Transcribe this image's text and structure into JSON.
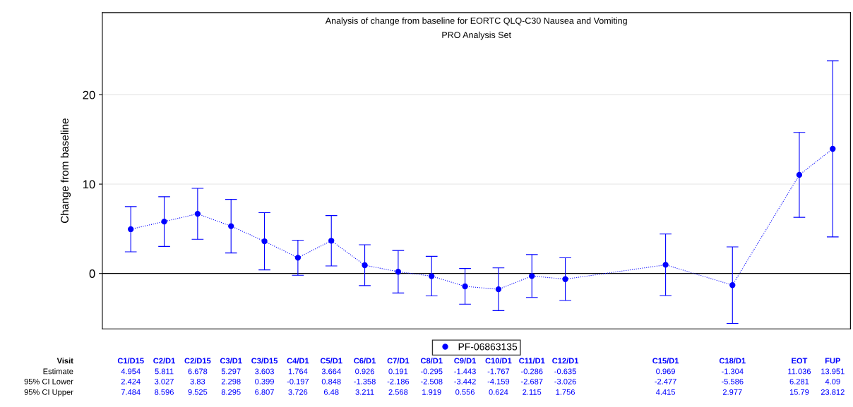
{
  "chart_data": {
    "type": "line",
    "title": "Analysis of change from baseline for EORTC QLQ-C30 Nausea and Vomiting",
    "subtitle": "PRO Analysis Set",
    "ylabel": "Change from baseline",
    "categories": [
      "C1/D15",
      "C2/D1",
      "C2/D15",
      "C3/D1",
      "C3/D15",
      "C4/D1",
      "C5/D1",
      "C6/D1",
      "C7/D1",
      "C8/D1",
      "C9/D1",
      "C10/D1",
      "C11/D1",
      "C12/D1",
      null,
      null,
      "C15/D1",
      null,
      "C18/D1",
      null,
      "EOT",
      "FUP"
    ],
    "series": [
      {
        "name": "PF-06863135",
        "color": "#0000ff",
        "values": [
          4.954,
          5.811,
          6.678,
          5.297,
          3.603,
          1.764,
          3.664,
          0.926,
          0.191,
          -0.295,
          -1.443,
          -1.767,
          -0.286,
          -0.635,
          null,
          null,
          0.969,
          null,
          -1.304,
          null,
          11.036,
          13.951
        ],
        "errors": [
          [
            2.424,
            7.484
          ],
          [
            3.027,
            8.596
          ],
          [
            3.83,
            9.525
          ],
          [
            2.298,
            8.295
          ],
          [
            0.399,
            6.807
          ],
          [
            -0.197,
            3.726
          ],
          [
            0.848,
            6.48
          ],
          [
            -1.358,
            3.211
          ],
          [
            -2.186,
            2.568
          ],
          [
            -2.508,
            1.919
          ],
          [
            -3.442,
            0.556
          ],
          [
            -4.159,
            0.624
          ],
          [
            -2.687,
            2.115
          ],
          [
            -3.026,
            1.756
          ],
          null,
          null,
          [
            -2.477,
            4.415
          ],
          null,
          [
            -5.586,
            2.977
          ],
          null,
          [
            6.281,
            15.79
          ],
          [
            4.09,
            23.812
          ]
        ]
      }
    ],
    "ylim": [
      -6.2,
      29.2
    ],
    "yticks": [
      0,
      10,
      20
    ],
    "grid": "y",
    "tick_labels": "y",
    "ref_lines": [
      {
        "axis": "y",
        "value": 0,
        "color": "#000000"
      }
    ],
    "marker": "circle",
    "line_style": "dotted",
    "legend": "bottom",
    "data_labels": true,
    "annotations": [
      "Visit",
      "Estimate",
      "95% CI Lower",
      "95% CI Upper",
      "2.424",
      "3.027",
      "3.83",
      "2.298",
      "0.399",
      "-0.197",
      "0.848",
      "-1.358",
      "-2.186",
      "-2.508",
      "-3.442",
      "-4.159",
      "-2.687",
      "-3.026",
      "-2.477",
      "-5.586",
      "6.281",
      "4.09",
      "7.484",
      "8.596",
      "9.525",
      "8.295",
      "6.807",
      "3.726",
      "6.48",
      "3.211",
      "2.568",
      "1.919",
      "0.556",
      "0.624",
      "2.115",
      "1.756",
      "4.415",
      "2.977",
      "15.79",
      "23.812"
    ]
  }
}
